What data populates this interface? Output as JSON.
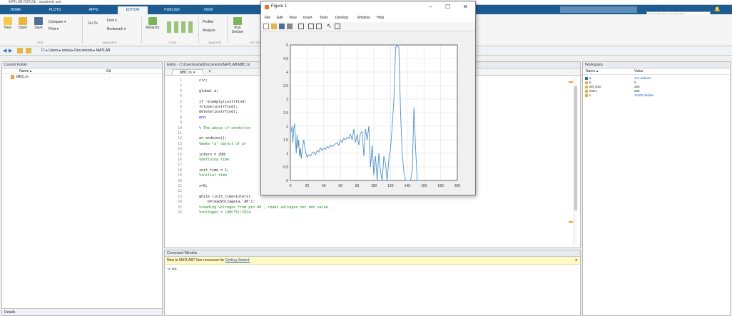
{
  "app": {
    "title": "MATLAB R2019b - academic use"
  },
  "tabs": [
    "HOME",
    "PLOTS",
    "APPS",
    "EDITOR",
    "PUBLISH",
    "VIEW"
  ],
  "active_tab": "EDITOR",
  "search_placeholder": "Search Documentation",
  "toolstrip": {
    "tools": [
      "New",
      "Open",
      "Save",
      "Compare",
      "Print",
      "Go To",
      "Find",
      "Bookmark",
      "Refactor",
      "Profiler",
      "Analyze",
      "Run Section"
    ],
    "sections": [
      "FILE",
      "NAVIGATE",
      "CODE",
      "ANALYZE",
      "SECTION"
    ]
  },
  "address": {
    "path": "C: ▸ Users ▸ nahal ▸ Documents ▸ MATLAB"
  },
  "current_folder": {
    "title": "Current Folder",
    "col_name": "Name ▴",
    "col_git": "Git",
    "files": [
      {
        "name": "MBC.m",
        "git": "."
      }
    ],
    "details_label": "Details"
  },
  "editor": {
    "title": "Editor - C:\\Users\\nahal\\Documents\\MATLAB\\MBC.m",
    "tab": "MBC.m",
    "add_tab": "+",
    "lines": [
      {
        "n": "1",
        "text": "clc;",
        "cls": ""
      },
      {
        "n": "2",
        "text": "",
        "cls": ""
      },
      {
        "n": "3",
        "text": "global a;",
        "cls": ""
      },
      {
        "n": "4",
        "text": "",
        "cls": ""
      },
      {
        "n": "5",
        "text": "if ~isempty(instrfind)",
        "cls": ""
      },
      {
        "n": "6",
        "text": "fclose(instrfind);",
        "cls": ""
      },
      {
        "n": "7",
        "text": "delete(instrfind);",
        "cls": ""
      },
      {
        "n": "8",
        "text": "end",
        "cls": "kw"
      },
      {
        "n": "9",
        "text": "",
        "cls": ""
      },
      {
        "n": "10",
        "text": "% The above if-condition",
        "cls": "cm"
      },
      {
        "n": "11",
        "text": "",
        "cls": ""
      },
      {
        "n": "12",
        "text": "a= arduino();",
        "cls": ""
      },
      {
        "n": "13",
        "text": "%make \"a\" object of ar",
        "cls": "cm"
      },
      {
        "n": "14",
        "text": "",
        "cls": ""
      },
      {
        "n": "15",
        "text": "interv = 200;",
        "cls": ""
      },
      {
        "n": "16",
        "text": "%defining time",
        "cls": "cm"
      },
      {
        "n": "17",
        "text": "",
        "cls": ""
      },
      {
        "n": "18",
        "text": "init_time = 1;",
        "cls": ""
      },
      {
        "n": "19",
        "text": "%initial time",
        "cls": "cm"
      },
      {
        "n": "20",
        "text": "",
        "cls": ""
      },
      {
        "n": "21",
        "text": "x=0;",
        "cls": ""
      },
      {
        "n": "22",
        "text": "",
        "cls": ""
      },
      {
        "n": "23",
        "text": "while (init_time<interv)",
        "cls": ""
      },
      {
        "n": "24",
        "text": "    b=readVoltage(a,'A0');",
        "cls": ""
      },
      {
        "n": "25",
        "text": "%reading voltages from pin A0 , reads voltages not adc value ,",
        "cls": "cm"
      },
      {
        "n": "26",
        "text": "%voltages = (ADC*5)/1024",
        "cls": "cm"
      }
    ]
  },
  "command_window": {
    "title": "Command Window",
    "notice_prefix": "New to MATLAB? See resources for ",
    "notice_link": "Getting Started.",
    "prompt": ">>"
  },
  "workspace": {
    "title": "Workspace",
    "col_name": "Name ▴",
    "col_value": "Value",
    "vars": [
      {
        "name": "a",
        "value": "1x1 arduino"
      },
      {
        "name": "b",
        "value": "0"
      },
      {
        "name": "init_time",
        "value": "200"
      },
      {
        "name": "interv",
        "value": "200"
      },
      {
        "name": "x",
        "value": "1x200 double"
      }
    ]
  },
  "figure": {
    "title": "Figure 1",
    "menus": [
      "File",
      "Edit",
      "View",
      "Insert",
      "Tools",
      "Desktop",
      "Window",
      "Help"
    ],
    "window_buttons": [
      "–",
      "☐",
      "✕"
    ]
  },
  "chart_data": {
    "type": "line",
    "xlim": [
      0,
      200
    ],
    "ylim": [
      0,
      5
    ],
    "xticks": [
      "0",
      "20",
      "40",
      "60",
      "80",
      "100",
      "120",
      "140",
      "160",
      "180",
      "200"
    ],
    "yticks": [
      "0",
      "0.5",
      "1",
      "1.5",
      "2",
      "2.5",
      "3",
      "3.5",
      "4",
      "4.5",
      "5"
    ],
    "grid": true,
    "color": "#4a90c8",
    "series": [
      {
        "x": [
          1,
          2,
          3,
          4,
          5,
          6,
          7,
          8,
          9,
          10,
          11,
          12,
          13,
          14,
          15,
          16,
          18,
          20,
          22,
          24,
          26,
          28,
          30,
          32,
          34,
          36,
          38,
          40,
          42,
          44,
          46,
          48,
          50,
          52,
          54,
          56,
          58,
          60,
          62,
          64,
          66,
          68,
          70,
          72,
          74,
          76,
          78,
          80,
          82,
          84,
          86,
          88,
          90,
          92,
          94,
          96,
          98,
          100,
          102,
          104,
          106,
          108,
          110,
          112,
          114,
          116,
          118,
          120,
          122,
          124,
          126,
          128,
          130,
          132,
          134,
          136,
          138,
          140,
          142,
          144,
          146,
          148,
          150,
          152,
          154,
          156,
          158
        ],
        "y": [
          1.8,
          2.0,
          1.4,
          1.9,
          2.1,
          1.6,
          1.0,
          1.7,
          1.2,
          1.5,
          0.9,
          1.2,
          0.8,
          1.1,
          1.3,
          1.5,
          1.1,
          0.85,
          0.95,
          0.9,
          1.0,
          1.05,
          0.95,
          1.1,
          1.05,
          1.2,
          1.1,
          1.2,
          1.15,
          1.25,
          1.2,
          1.3,
          1.25,
          1.3,
          1.35,
          1.4,
          1.3,
          1.5,
          1.4,
          1.55,
          1.5,
          1.6,
          1.55,
          1.7,
          1.5,
          1.9,
          1.4,
          1.7,
          1.3,
          1.75,
          1.8,
          0.9,
          1.9,
          1.5,
          2.0,
          0.5,
          1.3,
          0.2,
          0.9,
          0.0,
          1.0,
          0.3,
          0.0,
          0.9,
          0.6,
          0.0,
          0.8,
          1.2,
          2.0,
          3.0,
          4.9,
          5.0,
          4.9,
          2.5,
          1.0,
          0.3,
          0.0,
          0.0,
          0.0,
          0.0,
          0.4,
          2.7,
          1.2,
          0.0,
          0.0,
          0.0,
          0.0
        ]
      }
    ]
  }
}
